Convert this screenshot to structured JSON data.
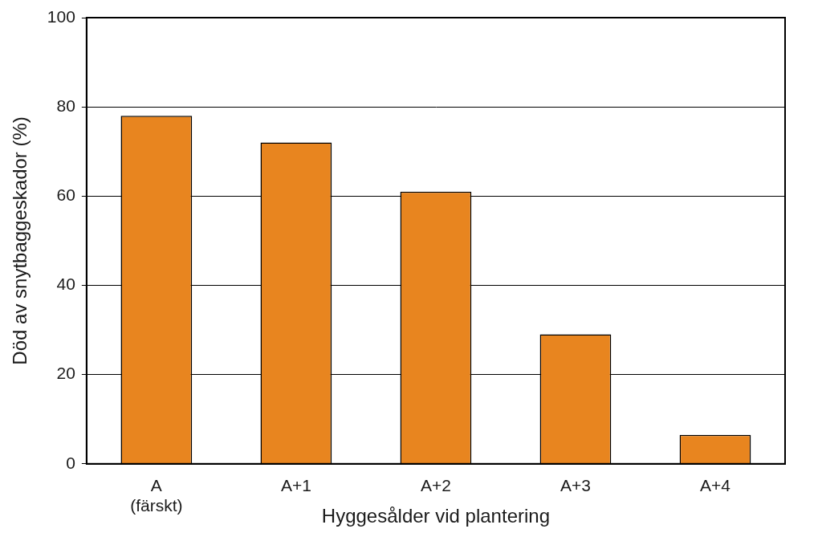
{
  "chart_data": {
    "type": "bar",
    "x_label": "Hyggesålder vid plantering",
    "y_label": "Död av snytbaggeskador (%)",
    "categories": [
      [
        "A",
        "(färskt)"
      ],
      "A+1",
      "A+2",
      "A+3",
      "A+4"
    ],
    "values": [
      78,
      72,
      61,
      29,
      6.5
    ],
    "color": "#e8851f",
    "ylim": [
      0,
      100
    ],
    "yticks": [
      0,
      20,
      40,
      60,
      80,
      100
    ],
    "grid": true
  }
}
